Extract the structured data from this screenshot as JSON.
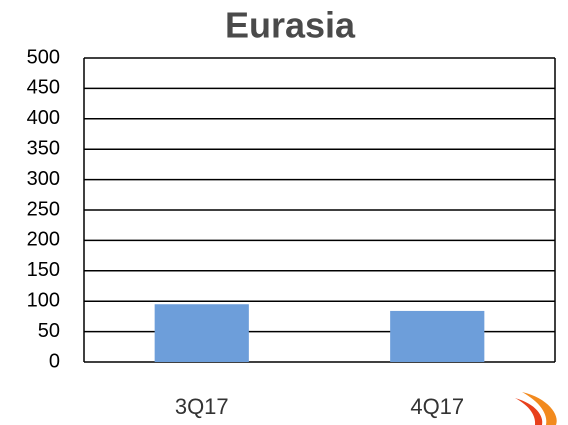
{
  "chart_data": {
    "type": "bar",
    "title": "Eurasia",
    "categories": [
      "3Q17",
      "4Q17"
    ],
    "values": [
      95,
      84
    ],
    "color": "#6d9eda",
    "ylim": [
      0,
      500
    ],
    "yticks": [
      0,
      50,
      100,
      150,
      200,
      250,
      300,
      350,
      400,
      450,
      500
    ],
    "grid": true
  }
}
